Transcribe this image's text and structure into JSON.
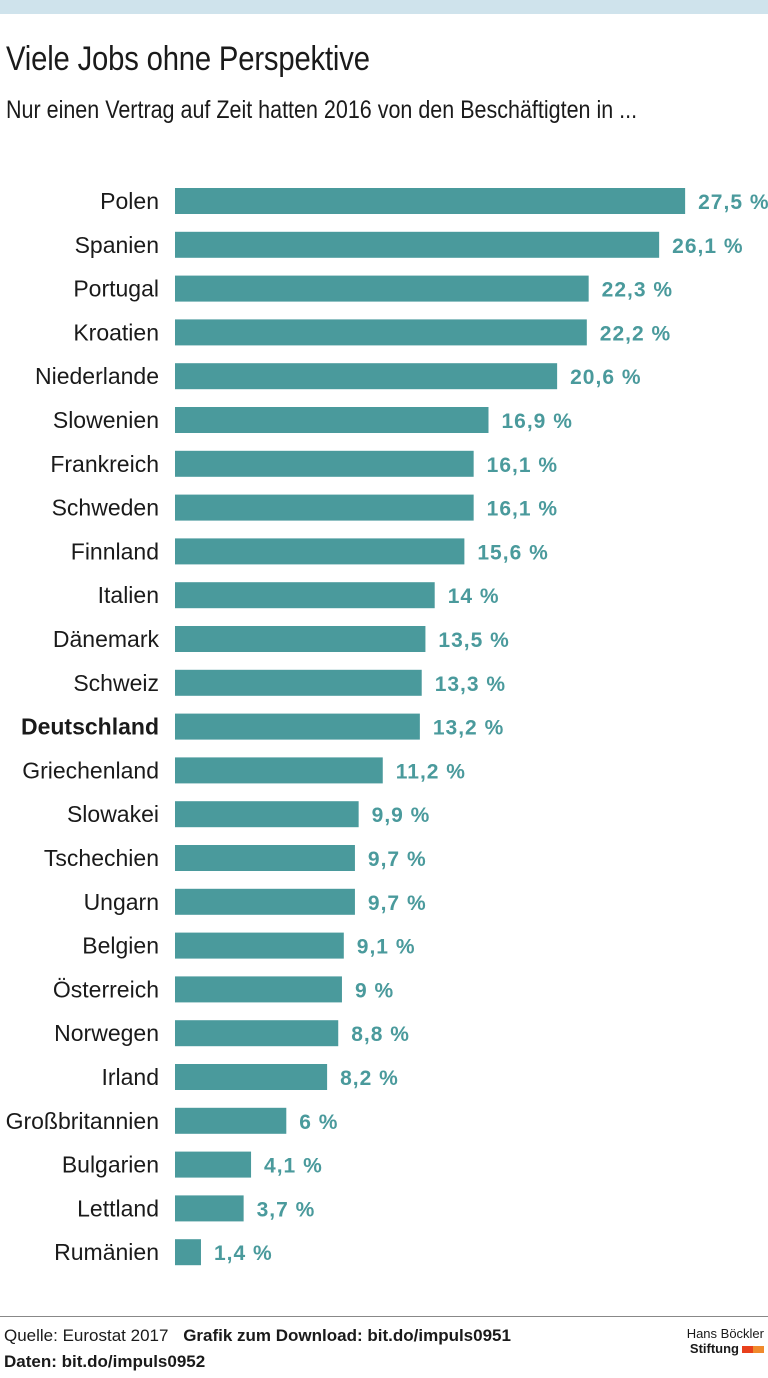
{
  "header": {
    "title": "Viele Jobs ohne Perspektive",
    "subtitle": "Nur einen Vertrag auf Zeit hatten 2016 von den Beschäftigten in ..."
  },
  "footer": {
    "source": "Quelle: Eurostat 2017",
    "download": "Grafik zum Download: bit.do/impuls0951",
    "data_link": "Daten: bit.do/impuls0952",
    "logo_line1": "Hans Böckler",
    "logo_line2": "Stiftung"
  },
  "colors": {
    "bar": "#4a9a9c",
    "value_label": "#4a9a9c",
    "top_band": "#cfe3ec"
  },
  "chart_data": {
    "type": "bar",
    "orientation": "horizontal",
    "unit": "%",
    "highlighted_category": "Deutschland",
    "categories": [
      "Polen",
      "Spanien",
      "Portugal",
      "Kroatien",
      "Niederlande",
      "Slowenien",
      "Frankreich",
      "Schweden",
      "Finnland",
      "Italien",
      "Dänemark",
      "Schweiz",
      "Deutschland",
      "Griechenland",
      "Slowakei",
      "Tschechien",
      "Ungarn",
      "Belgien",
      "Österreich",
      "Norwegen",
      "Irland",
      "Großbritannien",
      "Bulgarien",
      "Lettland",
      "Rumänien"
    ],
    "values": [
      27.5,
      26.1,
      22.3,
      22.2,
      20.6,
      16.9,
      16.1,
      16.1,
      15.6,
      14,
      13.5,
      13.3,
      13.2,
      11.2,
      9.9,
      9.7,
      9.7,
      9.1,
      9,
      8.8,
      8.2,
      6,
      4.1,
      3.7,
      1.4
    ],
    "value_labels": [
      "27,5 %",
      "26,1 %",
      "22,3 %",
      "22,2 %",
      "20,6 %",
      "16,9 %",
      "16,1 %",
      "16,1 %",
      "15,6 %",
      "14 %",
      "13,5 %",
      "13,3 %",
      "13,2 %",
      "11,2 %",
      "9,9 %",
      "9,7 %",
      "9,7 %",
      "9,1 %",
      "9 %",
      "8,8 %",
      "8,2 %",
      "6 %",
      "4,1 %",
      "3,7 %",
      "1,4 %"
    ]
  }
}
